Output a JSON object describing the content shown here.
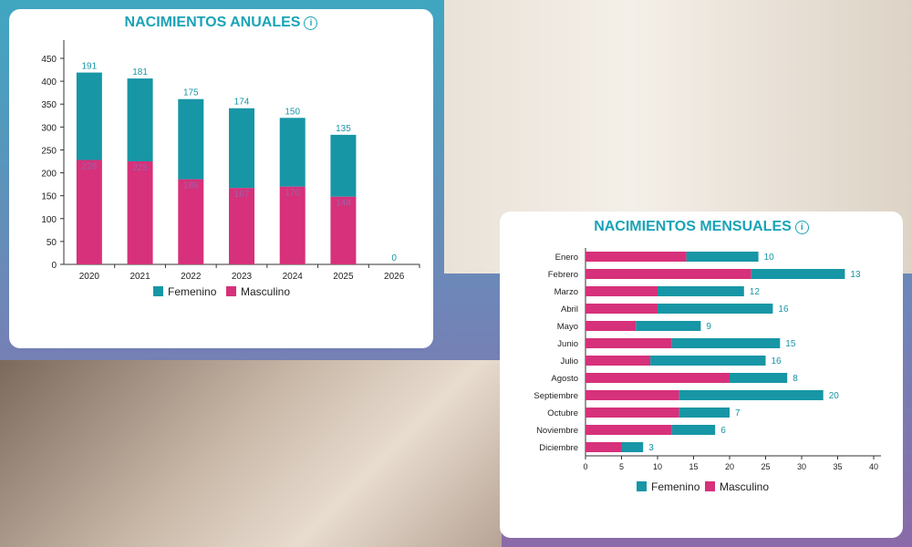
{
  "colors": {
    "femenino": "#1796a6",
    "masculino": "#d6317a",
    "title": "#1aa3b6"
  },
  "photos": [
    "baby-with-hat-photo",
    "baby-feet-photo"
  ],
  "chart_data": [
    {
      "type": "bar",
      "orientation": "vertical",
      "stacked": true,
      "title": "NACIMIENTOS ANUALES",
      "categories": [
        "2020",
        "2021",
        "2022",
        "2023",
        "2024",
        "2025",
        "2026"
      ],
      "series": [
        {
          "name": "Masculino",
          "values": [
            228,
            225,
            186,
            167,
            170,
            148,
            0
          ]
        },
        {
          "name": "Femenino",
          "values": [
            191,
            181,
            175,
            174,
            150,
            135,
            0
          ]
        }
      ],
      "yticks": [
        "0",
        "50",
        "100",
        "150",
        "200",
        "250",
        "300",
        "350",
        "400",
        "450"
      ],
      "ylim": [
        0,
        450
      ],
      "legend": [
        "Femenino",
        "Masculino"
      ],
      "legend_position": "bottom"
    },
    {
      "type": "bar",
      "orientation": "horizontal",
      "stacked": true,
      "title": "NACIMIENTOS MENSUALES",
      "categories": [
        "Enero",
        "Febrero",
        "Marzo",
        "Abril",
        "Mayo",
        "Junio",
        "Julio",
        "Agosto",
        "Septiembre",
        "Octubre",
        "Noviembre",
        "Diciembre"
      ],
      "series": [
        {
          "name": "Masculino",
          "values": [
            14,
            23,
            10,
            10,
            7,
            12,
            9,
            20,
            13,
            13,
            12,
            5
          ]
        },
        {
          "name": "Femenino",
          "values": [
            10,
            13,
            12,
            16,
            9,
            15,
            16,
            8,
            20,
            7,
            6,
            3
          ]
        }
      ],
      "xticks": [
        "0",
        "5",
        "10",
        "15",
        "20",
        "25",
        "30",
        "35",
        "40"
      ],
      "xlim": [
        0,
        40
      ],
      "legend": [
        "Femenino",
        "Masculino"
      ],
      "legend_position": "bottom"
    }
  ]
}
